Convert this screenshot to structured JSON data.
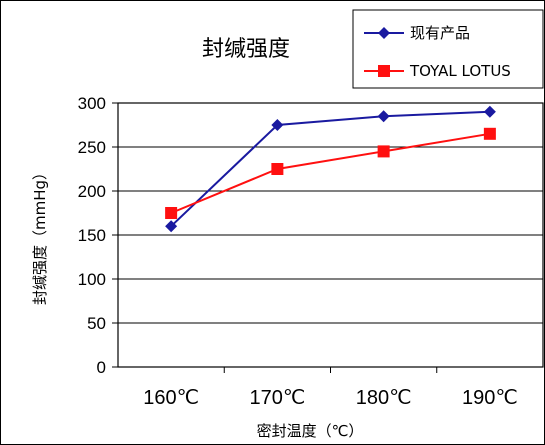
{
  "chart_data": {
    "type": "line",
    "title": "封缄强度",
    "xlabel": "密封温度（℃）",
    "ylabel": "封缄强度（mmHg）",
    "categories": [
      "160℃",
      "170℃",
      "180℃",
      "190℃"
    ],
    "ylim": [
      0,
      300
    ],
    "yticks": [
      0,
      50,
      100,
      150,
      200,
      250,
      300
    ],
    "grid": true,
    "legend_position": "top-right",
    "series": [
      {
        "name": "现有产品",
        "values": [
          160,
          275,
          285,
          290
        ],
        "color": "#1a1aa0",
        "marker": "diamond"
      },
      {
        "name": "TOYAL LOTUS",
        "values": [
          175,
          225,
          245,
          265
        ],
        "color": "#ff1010",
        "marker": "square"
      }
    ]
  }
}
